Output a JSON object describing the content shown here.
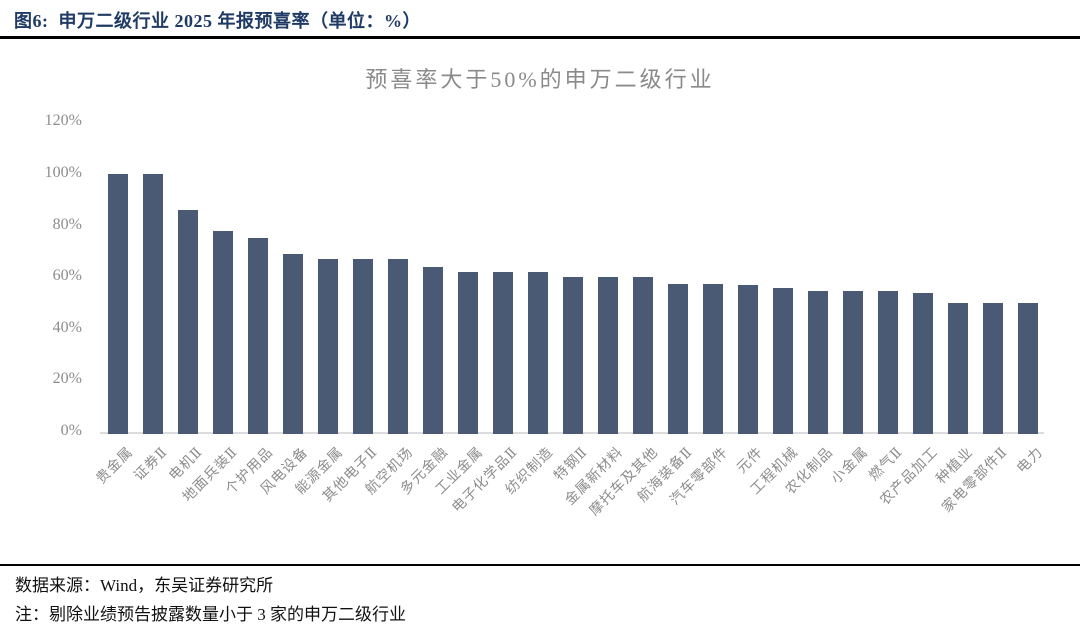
{
  "header": {
    "caption": "图6:  申万二级行业 2025 年报预喜率（单位：%）"
  },
  "chart_data": {
    "type": "bar",
    "title": "预喜率大于50%的申万二级行业",
    "categories": [
      "贵金属",
      "证券Ⅱ",
      "电机Ⅱ",
      "地面兵装Ⅱ",
      "个护用品",
      "风电设备",
      "能源金属",
      "其他电子Ⅱ",
      "航空机场",
      "多元金融",
      "工业金属",
      "电子化学品Ⅱ",
      "纺织制造",
      "特钢Ⅱ",
      "金属新材料",
      "摩托车及其他",
      "航海装备Ⅱ",
      "汽车零部件",
      "元件",
      "工程机械",
      "农化制品",
      "小金属",
      "燃气Ⅱ",
      "农产品加工",
      "种植业",
      "家电零部件Ⅱ",
      "电力"
    ],
    "values": [
      100,
      100,
      86,
      78,
      75,
      69,
      67,
      67,
      67,
      64,
      62,
      62,
      62,
      60,
      60,
      60,
      57.5,
      57.5,
      57,
      56,
      54.5,
      54.5,
      54.5,
      54,
      50,
      50,
      50
    ],
    "unit": "%",
    "xlabel": "",
    "ylabel": "",
    "ylim": [
      0,
      120
    ],
    "yticks": [
      0,
      20,
      40,
      60,
      80,
      100,
      120
    ],
    "ytick_suffix": "%",
    "grid": false,
    "legend": false,
    "bar_color": "#4a5a74"
  },
  "footer": {
    "source": "数据来源：Wind，东吴证券研究所",
    "note": "注：剔除业绩预告披露数量小于 3 家的申万二级行业"
  },
  "colors": {
    "heading_text": "#1f3a64",
    "axis_text": "#8c8c8c",
    "bar": "#4a5a74",
    "axis_line": "#dcdcdc",
    "divider": "#000000"
  }
}
